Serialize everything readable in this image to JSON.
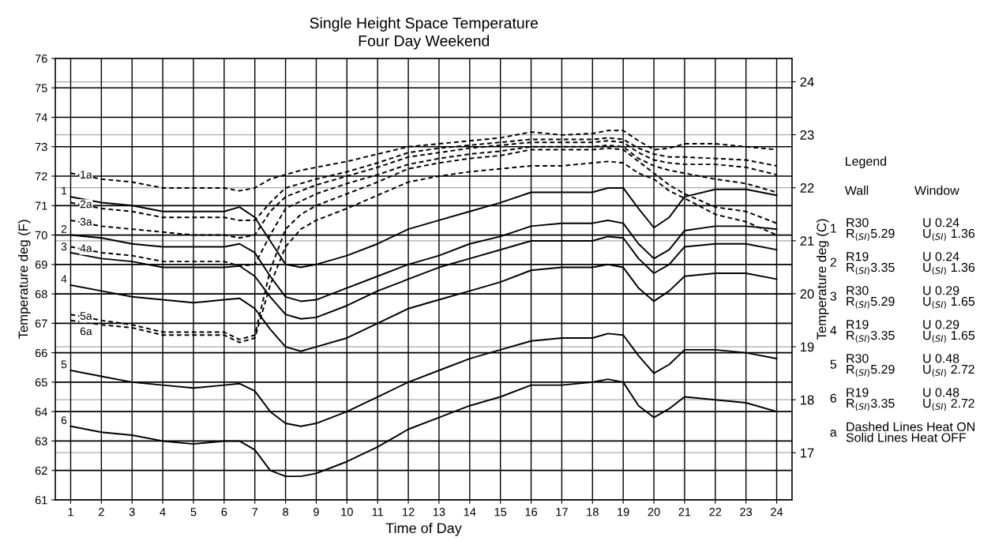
{
  "chart_data": {
    "type": "line",
    "title": "Single Height Space Temperature",
    "subtitle": "Four Day Weekend",
    "xlabel": "Time of Day",
    "ylabel": "Temperature deg (F)",
    "y2label": "Temperature deg (C)",
    "x": [
      1,
      2,
      3,
      4,
      5,
      6,
      6.5,
      7,
      7.5,
      8,
      8.5,
      9,
      10,
      11,
      12,
      13,
      14,
      15,
      16,
      17,
      18,
      18.5,
      19,
      19.5,
      20,
      20.5,
      21,
      22,
      23,
      24
    ],
    "series": [
      {
        "name": "1",
        "color": "#000000",
        "line_style": "solid",
        "values": [
          71.3,
          71.1,
          71.0,
          70.8,
          70.8,
          70.8,
          70.95,
          70.6,
          69.8,
          69.0,
          68.9,
          69.0,
          69.3,
          69.7,
          70.2,
          70.5,
          70.8,
          71.1,
          71.45,
          71.45,
          71.45,
          71.6,
          71.6,
          70.9,
          70.25,
          70.6,
          71.3,
          71.55,
          71.55,
          71.35
        ]
      },
      {
        "name": "2",
        "color": "#000000",
        "line_style": "solid",
        "values": [
          70.0,
          69.9,
          69.7,
          69.6,
          69.6,
          69.6,
          69.7,
          69.4,
          68.6,
          67.9,
          67.75,
          67.8,
          68.2,
          68.6,
          69.0,
          69.3,
          69.7,
          69.95,
          70.3,
          70.4,
          70.4,
          70.5,
          70.4,
          69.7,
          69.2,
          69.5,
          70.15,
          70.3,
          70.3,
          70.2
        ]
      },
      {
        "name": "3",
        "color": "#000000",
        "line_style": "solid",
        "values": [
          69.4,
          69.2,
          69.1,
          68.9,
          68.9,
          68.9,
          68.95,
          68.6,
          67.9,
          67.3,
          67.15,
          67.2,
          67.6,
          68.1,
          68.5,
          68.9,
          69.2,
          69.5,
          69.8,
          69.8,
          69.8,
          69.95,
          69.9,
          69.2,
          68.7,
          69.0,
          69.6,
          69.7,
          69.7,
          69.5
        ]
      },
      {
        "name": "4",
        "color": "#000000",
        "line_style": "solid",
        "values": [
          68.3,
          68.1,
          67.9,
          67.8,
          67.7,
          67.8,
          67.85,
          67.5,
          66.8,
          66.2,
          66.05,
          66.2,
          66.5,
          67.0,
          67.5,
          67.8,
          68.1,
          68.4,
          68.8,
          68.9,
          68.9,
          69.0,
          68.9,
          68.2,
          67.75,
          68.1,
          68.6,
          68.7,
          68.7,
          68.5
        ]
      },
      {
        "name": "5",
        "color": "#000000",
        "line_style": "solid",
        "values": [
          65.4,
          65.2,
          65.0,
          64.9,
          64.8,
          64.9,
          64.95,
          64.7,
          64.0,
          63.6,
          63.5,
          63.6,
          64.0,
          64.5,
          65.0,
          65.4,
          65.8,
          66.1,
          66.4,
          66.5,
          66.5,
          66.65,
          66.6,
          65.9,
          65.3,
          65.6,
          66.1,
          66.1,
          66.0,
          65.8
        ]
      },
      {
        "name": "6",
        "color": "#000000",
        "line_style": "solid",
        "values": [
          63.5,
          63.3,
          63.2,
          63.0,
          62.9,
          63.0,
          63.0,
          62.7,
          62.0,
          61.8,
          61.8,
          61.9,
          62.3,
          62.8,
          63.4,
          63.8,
          64.2,
          64.5,
          64.9,
          64.9,
          65.0,
          65.1,
          65.0,
          64.2,
          63.8,
          64.1,
          64.5,
          64.4,
          64.3,
          64.0
        ]
      },
      {
        "name": "1a",
        "color": "#000000",
        "line_style": "dashed",
        "values": [
          72.1,
          71.9,
          71.8,
          71.6,
          71.6,
          71.6,
          71.5,
          71.6,
          71.9,
          72.05,
          72.2,
          72.3,
          72.5,
          72.75,
          73.0,
          73.1,
          73.2,
          73.3,
          73.5,
          73.4,
          73.45,
          73.55,
          73.55,
          73.2,
          72.9,
          72.95,
          73.1,
          73.1,
          73.0,
          72.9
        ]
      },
      {
        "name": "2a",
        "color": "#000000",
        "line_style": "dashed",
        "values": [
          71.1,
          70.9,
          70.8,
          70.6,
          70.6,
          70.6,
          70.5,
          70.5,
          71.1,
          71.6,
          71.75,
          71.9,
          72.15,
          72.45,
          72.8,
          72.95,
          73.05,
          73.15,
          73.25,
          73.25,
          73.25,
          73.3,
          73.25,
          72.95,
          72.75,
          72.65,
          72.65,
          72.6,
          72.55,
          72.35
        ]
      },
      {
        "name": "3a",
        "color": "#000000",
        "line_style": "dashed",
        "values": [
          70.5,
          70.3,
          70.2,
          70.1,
          70.0,
          70.0,
          69.9,
          70.0,
          70.8,
          71.3,
          71.5,
          71.7,
          72.0,
          72.3,
          72.65,
          72.8,
          72.95,
          73.05,
          73.15,
          73.15,
          73.15,
          73.2,
          73.15,
          72.8,
          72.55,
          72.45,
          72.4,
          72.4,
          72.3,
          72.05
        ]
      },
      {
        "name": "4a",
        "color": "#000000",
        "line_style": "dashed",
        "values": [
          69.6,
          69.4,
          69.3,
          69.1,
          69.1,
          69.1,
          68.95,
          69.0,
          70.0,
          70.9,
          71.15,
          71.4,
          71.75,
          72.05,
          72.4,
          72.6,
          72.75,
          72.85,
          73.0,
          73.0,
          73.0,
          73.05,
          73.0,
          72.6,
          72.35,
          72.2,
          72.1,
          71.9,
          71.75,
          71.45
        ]
      },
      {
        "name": "5a",
        "color": "#000000",
        "line_style": "dashed",
        "values": [
          67.3,
          67.1,
          66.95,
          66.7,
          66.7,
          66.7,
          66.45,
          66.6,
          68.8,
          70.2,
          70.7,
          71.0,
          71.4,
          71.8,
          72.25,
          72.45,
          72.6,
          72.7,
          72.9,
          72.9,
          72.9,
          72.95,
          72.9,
          72.5,
          72.1,
          71.7,
          71.4,
          70.95,
          70.8,
          70.4
        ]
      },
      {
        "name": "6a",
        "color": "#000000",
        "line_style": "dashed",
        "values": [
          67.1,
          66.95,
          66.85,
          66.6,
          66.6,
          66.6,
          66.35,
          66.5,
          68.3,
          69.6,
          70.2,
          70.5,
          70.9,
          71.35,
          71.8,
          72.0,
          72.15,
          72.25,
          72.35,
          72.35,
          72.45,
          72.5,
          72.45,
          72.1,
          71.9,
          71.5,
          71.25,
          70.7,
          70.45,
          70.0
        ]
      }
    ],
    "xlim": [
      0.5,
      24.5
    ],
    "xticks": [
      1,
      2,
      3,
      4,
      5,
      6,
      7,
      8,
      9,
      10,
      11,
      12,
      13,
      14,
      15,
      16,
      17,
      18,
      19,
      20,
      21,
      22,
      23,
      24
    ],
    "ylim": [
      61,
      76
    ],
    "yticks": [
      61,
      62,
      63,
      64,
      65,
      66,
      67,
      68,
      69,
      70,
      71,
      72,
      73,
      74,
      75,
      76
    ],
    "y2lim": [
      16.11,
      24.44
    ],
    "y2ticks": [
      17,
      18,
      19,
      20,
      21,
      22,
      23,
      24
    ],
    "grid": true,
    "legend": false,
    "annotations": [
      "Legend",
      "Wall",
      "Window",
      "1",
      "R30\nR$_{(SI)}$5.29",
      "U 0.24\nU$_{(SI)}$ 1.36",
      "2",
      "R19\nR$_{(SI)}$3.35",
      "U 0.24\nU$_{(SI)}$ 1.36",
      "3",
      "R30\nR$_{(SI)}$5.29",
      "U 0.29\nU$_{(SI)}$ 1.65",
      "4",
      "R19\nR$_{(SI)}$3.35",
      "U 0.29\nU$_{(SI)}$ 1.65",
      "5",
      "R30\nR$_{(SI)}$5.29",
      "U 0.48\nU$_{(SI)}$ 2.72",
      "6",
      "R19\nR$_{(SI)}$3.35",
      "U 0.48\nU$_{(SI)}$ 2.72",
      "a",
      "Dashed Lines Heat ON\nSolid Lines Heat OFF"
    ]
  }
}
